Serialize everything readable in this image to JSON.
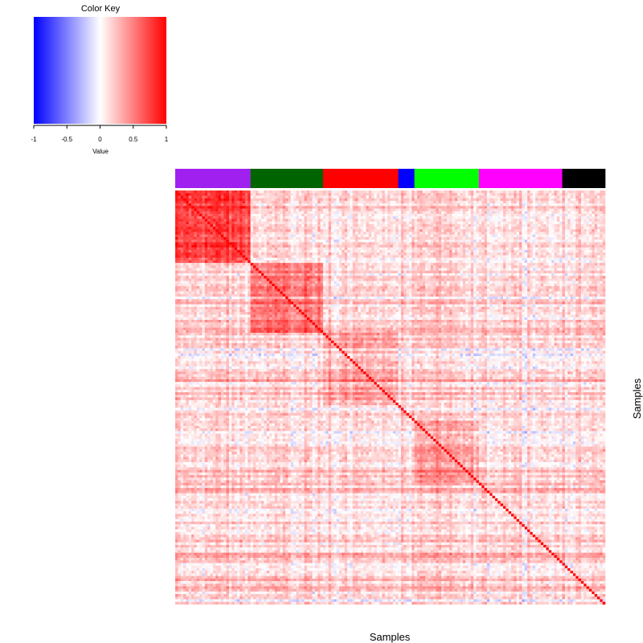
{
  "color_key": {
    "title": "Color Key",
    "xlabel": "Value",
    "ticks": [
      "-1",
      "-0.5",
      "0",
      "0.5",
      "1"
    ],
    "tick_values": [
      -1,
      -0.5,
      0,
      0.5,
      1
    ],
    "range": [
      -1,
      1
    ],
    "low_color": "#0000ff",
    "mid_color": "#ffffff",
    "high_color": "#ff0000"
  },
  "chart_data": {
    "type": "heatmap",
    "xlabel": "Samples",
    "ylabel": "Samples",
    "value_range": [
      -1,
      1
    ],
    "diagonal_value": 1,
    "n_samples": 160,
    "groups": [
      {
        "color": "#a020f0",
        "size": 28
      },
      {
        "color": "#006400",
        "size": 27
      },
      {
        "color": "#ff0000",
        "size": 28
      },
      {
        "color": "#0000ff",
        "size": 6
      },
      {
        "color": "#00ff00",
        "size": 24
      },
      {
        "color": "#ff00ff",
        "size": 31
      },
      {
        "color": "#000000",
        "size": 16
      }
    ],
    "within_group_mean_correlation": [
      0.75,
      0.5,
      0.35,
      0.2,
      0.35,
      0.2,
      0.15
    ],
    "background_mean_correlation": 0.15
  }
}
